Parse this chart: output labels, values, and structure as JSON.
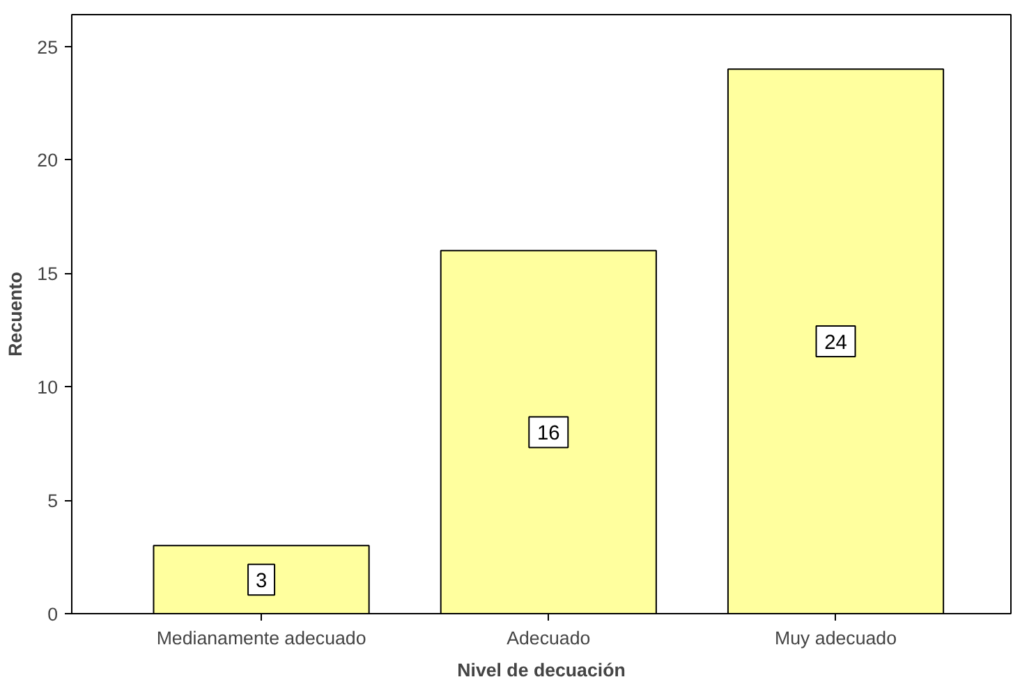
{
  "chart_data": {
    "type": "bar",
    "xlabel": "Nivel de decuación",
    "ylabel": "Recuento",
    "categories": [
      "Medianamente adecuado",
      "Adecuado",
      "Muy adecuado"
    ],
    "values": [
      3,
      16,
      24
    ],
    "color": "#ffff9e",
    "ylim": [
      0,
      26.4
    ],
    "yticks": [
      0,
      5,
      10,
      15,
      20,
      25
    ],
    "grid": false,
    "data_labels": true
  }
}
